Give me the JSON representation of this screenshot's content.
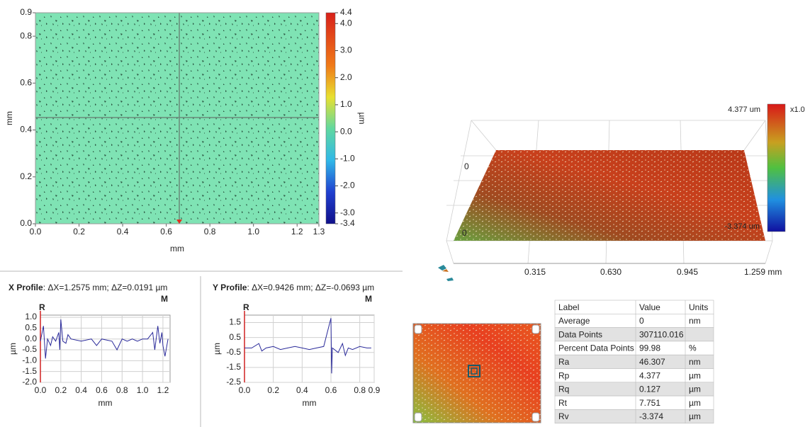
{
  "chart_data": [
    {
      "type": "heatmap",
      "xlabel": "mm",
      "ylabel": "mm",
      "xlim": [
        0,
        1.3
      ],
      "ylim": [
        0,
        0.9
      ],
      "xticks": [
        {
          "value": 0,
          "label": "0.0"
        },
        0.2,
        0.4,
        0.6,
        0.8,
        {
          "value": 1,
          "label": "1.0"
        },
        1.2,
        1.3
      ],
      "yticks": [
        {
          "value": 0,
          "label": "0.0"
        },
        0.2,
        0.4,
        0.6,
        0.8,
        0.9
      ],
      "colorbar": {
        "label": "µm",
        "lim": [
          -3.4,
          4.4
        ],
        "ticks": [
          4.4,
          {
            "value": 4,
            "label": "4.0"
          },
          {
            "value": 3,
            "label": "3.0"
          },
          {
            "value": 2,
            "label": "2.0"
          },
          {
            "value": 1,
            "label": "1.0"
          },
          {
            "value": 0,
            "label": "0.0"
          },
          {
            "value": -1,
            "label": "-1.0"
          },
          {
            "value": -2,
            "label": "-2.0"
          },
          {
            "value": -3,
            "label": "-3.0"
          },
          -3.4
        ]
      }
    },
    {
      "type": "line",
      "title": "X Profile",
      "subtitle": ": ΔX=1.2575 mm; ΔZ=0.0191 µm",
      "markers": [
        "R",
        "M"
      ],
      "xlabel": "mm",
      "ylabel": "µm",
      "color": "#2a2a9a",
      "grid": true,
      "xlim": [
        0,
        1.27
      ],
      "ylim": [
        -2,
        1.1
      ],
      "xticks": [
        {
          "value": 0,
          "label": "0.0"
        },
        0.2,
        0.4,
        0.6,
        0.8,
        {
          "value": 1,
          "label": "1.0"
        },
        1.2
      ],
      "yticks": [
        {
          "value": 1,
          "label": "1.0"
        },
        0.5,
        {
          "value": 0,
          "label": "0.0"
        },
        -0.5,
        {
          "value": -1,
          "label": "-1.0"
        },
        -1.5,
        {
          "value": -2,
          "label": "-2.0"
        }
      ],
      "x": [
        0.0,
        0.03,
        0.05,
        0.07,
        0.1,
        0.12,
        0.15,
        0.18,
        0.19,
        0.2,
        0.22,
        0.25,
        0.27,
        0.3,
        0.4,
        0.5,
        0.55,
        0.6,
        0.7,
        0.75,
        0.8,
        0.85,
        0.9,
        0.95,
        1.0,
        1.05,
        1.1,
        1.12,
        1.15,
        1.17,
        1.19,
        1.2,
        1.22,
        1.25
      ],
      "values": [
        -0.1,
        0.6,
        -0.9,
        0,
        -0.3,
        0.1,
        -0.1,
        0.3,
        -0.5,
        0.9,
        -0.1,
        -0.2,
        0.2,
        0,
        -0.1,
        0,
        -0.3,
        0,
        -0.1,
        -0.5,
        0,
        -0.1,
        0,
        -0.1,
        0,
        0,
        0.3,
        -0.5,
        0.6,
        -0.2,
        0.3,
        -0.3,
        -0.8,
        0
      ]
    },
    {
      "type": "line",
      "title": "Y Profile",
      "subtitle": ": ΔX=0.9426 mm; ΔZ=-0.0693 µm",
      "markers": [
        "R",
        "M"
      ],
      "xlabel": "mm",
      "ylabel": "µm",
      "color": "#2a2a9a",
      "grid": true,
      "xlim": [
        0,
        0.9
      ],
      "ylim": [
        -2.5,
        2
      ],
      "xticks": [
        {
          "value": 0,
          "label": "0.0"
        },
        0.2,
        0.4,
        0.6,
        0.8,
        0.9
      ],
      "yticks": [
        1.5,
        0.5,
        -0.5,
        -1.5,
        -2.5
      ],
      "x": [
        0,
        0.05,
        0.1,
        0.12,
        0.15,
        0.2,
        0.25,
        0.3,
        0.35,
        0.4,
        0.45,
        0.5,
        0.55,
        0.6,
        0.605,
        0.61,
        0.65,
        0.68,
        0.7,
        0.72,
        0.75,
        0.8,
        0.85,
        0.88
      ],
      "values": [
        -0.2,
        -0.2,
        0.1,
        -0.4,
        -0.2,
        -0.1,
        -0.3,
        -0.2,
        -0.1,
        -0.2,
        -0.3,
        -0.2,
        -0.1,
        1.8,
        -1.9,
        -0.2,
        -0.5,
        0.1,
        -0.7,
        -0.2,
        -0.3,
        -0.1,
        -0.2,
        -0.2
      ]
    }
  ],
  "view3d": {
    "max_label": "4.377 um",
    "scale_label": "x1.0",
    "min_label": "-3.374 um",
    "axis_labels": [
      "0.315",
      "0.630",
      "0.945",
      "1.259 mm"
    ],
    "z_labels": [
      "0",
      "0"
    ]
  },
  "table": {
    "header": [
      "Label",
      "Value",
      "Units"
    ],
    "rows": [
      [
        "Average",
        "0",
        "nm"
      ],
      [
        "Data Points",
        "307110.016"
      ],
      [
        "Percent Data Points",
        "99.98",
        "%"
      ],
      [
        "Ra",
        "46.307",
        "nm"
      ],
      [
        "Rp",
        "4.377",
        "µm"
      ],
      [
        "Rq",
        "0.127",
        "µm"
      ],
      [
        "Rt",
        "7.751",
        "µm"
      ],
      [
        "Rv",
        "-3.374",
        "µm"
      ]
    ]
  }
}
